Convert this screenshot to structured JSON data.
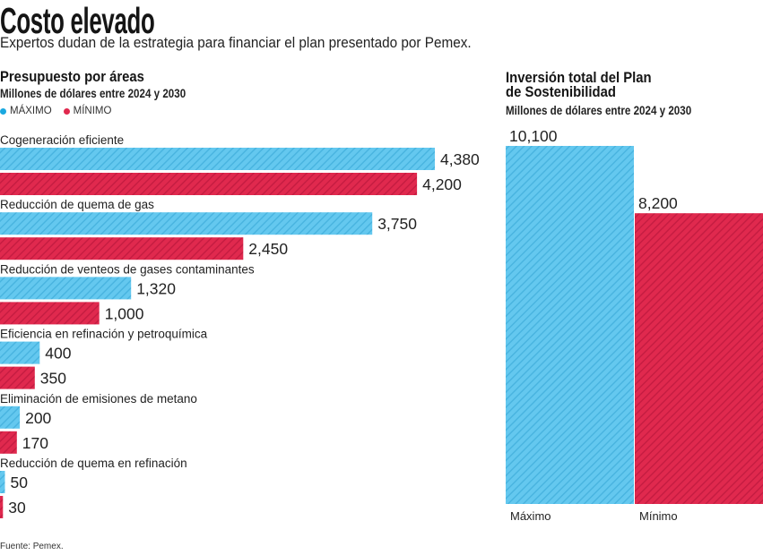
{
  "header": {
    "title": "Costo elevado",
    "subtitle": "Expertos dudan de la estrategia para financiar el plan presentado por Pemex."
  },
  "left_panel": {
    "title": "Presupuesto por áreas",
    "units": "Millones de dólares entre 2024 y 2030",
    "legend": [
      {
        "label": "MÁXIMO",
        "color": "#1aa8e0"
      },
      {
        "label": "MÍNIMO",
        "color": "#e0284d"
      }
    ]
  },
  "right_panel": {
    "title_line1": "Inversión total del Plan",
    "title_line2": "de Sostenibilidad",
    "units": "Millones de dólares entre 2024 y 2030"
  },
  "footer": {
    "source": "Fuente: Pemex."
  },
  "colors": {
    "max_fill": "#64c8ef",
    "max_hatch": "#45b2de",
    "min_fill": "#e0294e",
    "min_hatch": "#c21b40"
  },
  "chart_data": [
    {
      "type": "bar",
      "orientation": "horizontal",
      "title": "Presupuesto por áreas",
      "subtitle": "Millones de dólares entre 2024 y 2030",
      "xlabel": "",
      "ylabel": "",
      "grid": false,
      "legend_position": "top-left",
      "categories": [
        "Cogeneración eficiente",
        "Reducción de quema de gas",
        "Reducción de venteos de gases contaminantes",
        "Eficiencia en refinación y petroquímica",
        "Eliminación de emisiones de metano",
        "Reducción de quema en refinación"
      ],
      "series": [
        {
          "name": "MÁXIMO",
          "values": [
            4380,
            3750,
            1320,
            400,
            200,
            50
          ],
          "labels": [
            "4,380",
            "3,750",
            "1,320",
            "400",
            "200",
            "50"
          ]
        },
        {
          "name": "MÍNIMO",
          "values": [
            4200,
            2450,
            1000,
            350,
            170,
            30
          ],
          "labels": [
            "4,200",
            "2,450",
            "1,000",
            "350",
            "170",
            "30"
          ]
        }
      ]
    },
    {
      "type": "bar",
      "orientation": "vertical",
      "title": "Inversión total del Plan de Sostenibilidad",
      "subtitle": "Millones de dólares entre 2024 y 2030",
      "xlabel": "",
      "ylabel": "",
      "grid": false,
      "ylim": [
        0,
        10100
      ],
      "categories": [
        "Máximo",
        "Mínimo"
      ],
      "values": [
        10100,
        8200
      ],
      "labels": [
        "10,100",
        "8,200"
      ]
    }
  ]
}
